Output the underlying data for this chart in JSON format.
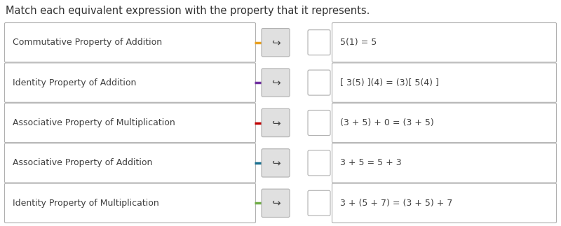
{
  "title": "Match each equivalent expression with the property that it represents.",
  "title_fontsize": 10.5,
  "bg_color": "#ffffff",
  "left_labels": [
    "Commutative Property of Addition",
    "Identity Property of Addition",
    "Associative Property of Multiplication",
    "Associative Property of Addition",
    "Identity Property of Multiplication"
  ],
  "right_labels": [
    "5(1) = 5",
    "[ 3(5) ](4) = (3)[ 5(4) ]",
    "(3 + 5) + 0 = (3 + 5)",
    "3 + 5 = 5 + 3",
    "3 + (5 + 7) = (3 + 5) + 7"
  ],
  "arrow_colors": [
    "#e8a020",
    "#7030a0",
    "#c00000",
    "#1a7090",
    "#70ad47"
  ],
  "box_color": "#ffffff",
  "box_edge_color": "#b0b0b0",
  "btn_color": "#e0e0e0",
  "btn_edge_color": "#b0b0b0",
  "text_color": "#404040",
  "text_fontsize": 9.0,
  "title_color": "#333333"
}
